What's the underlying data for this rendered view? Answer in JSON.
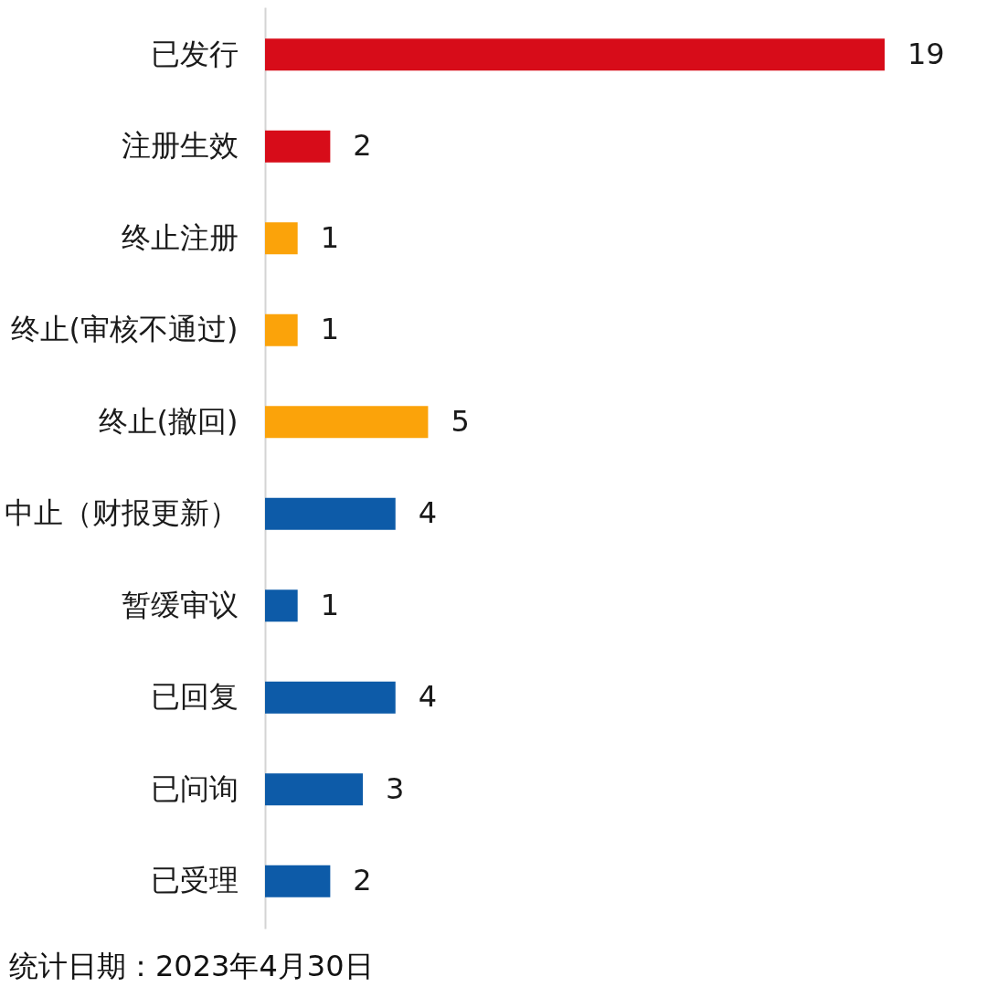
{
  "chart_data": {
    "type": "bar",
    "orientation": "horizontal",
    "categories": [
      "已发行",
      "注册生效",
      "终止注册",
      "终止(审核不通过)",
      "终止(撤回)",
      "中止（财报更新）",
      "暂缓审议",
      "已回复",
      "已问询",
      "已受理"
    ],
    "values": [
      19,
      2,
      1,
      1,
      5,
      4,
      1,
      4,
      3,
      2
    ],
    "colors": [
      "#d70c19",
      "#d70c19",
      "#fba30a",
      "#fba30a",
      "#fba30a",
      "#0d5ba8",
      "#0d5ba8",
      "#0d5ba8",
      "#0d5ba8",
      "#0d5ba8"
    ],
    "data_labels": true,
    "tick_labels": "y",
    "annotations": [
      "统计日期：2023年4月30日"
    ]
  }
}
